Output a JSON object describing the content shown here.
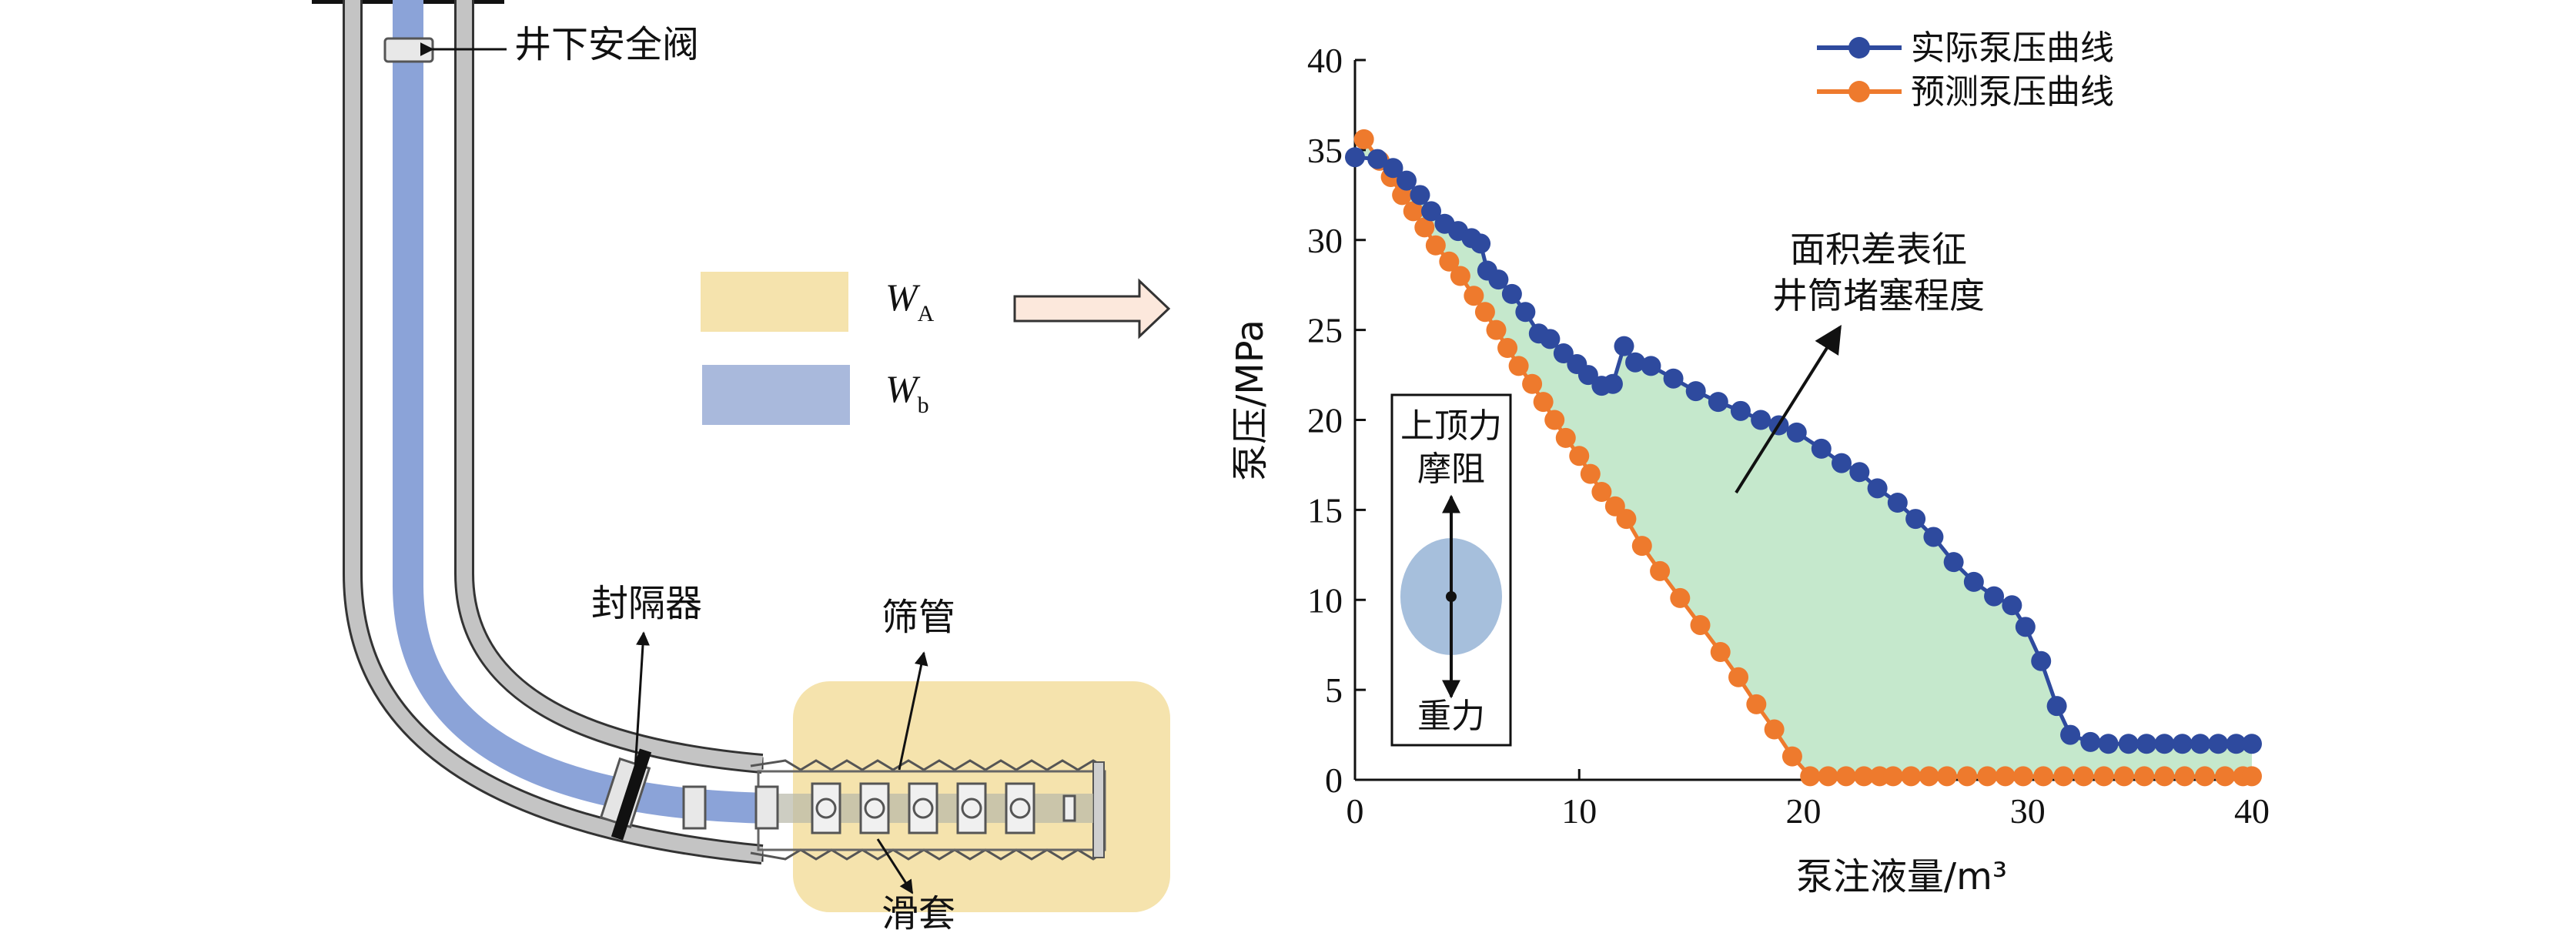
{
  "diagram": {
    "labels": {
      "valve": "井下安全阀",
      "packer": "封隔器",
      "screen": "筛管",
      "sleeve": "滑套"
    },
    "legend": {
      "wa_symbol": "W",
      "wa_sub": "A",
      "wb_symbol": "W",
      "wb_sub": "b",
      "wa_color": "#f5e3ad",
      "wb_color": "#a9b9dc"
    },
    "colors": {
      "pipe_fill": "#bdbdbd",
      "tubing": "#8ba3d8",
      "screen_zone": "#f5e3ad"
    }
  },
  "chart_data": {
    "type": "line",
    "xlabel": "泵注液量/m³",
    "ylabel": "泵压/MPa",
    "xlim": [
      0,
      40
    ],
    "ylim": [
      0,
      40
    ],
    "xticks": [
      "0",
      "10",
      "20",
      "30",
      "40"
    ],
    "yticks": [
      "0",
      "5",
      "10",
      "15",
      "20",
      "25",
      "30",
      "35",
      "40"
    ],
    "legend_position": "top-right",
    "series": [
      {
        "name": "实际泵压曲线",
        "color": "#2e4a9e",
        "x": [
          0.0,
          1.0,
          1.7,
          2.3,
          2.9,
          3.4,
          4.0,
          4.6,
          5.2,
          5.6,
          5.9,
          6.4,
          7.0,
          7.6,
          8.2,
          8.7,
          9.3,
          9.9,
          10.4,
          11.0,
          11.5,
          12.0,
          12.5,
          13.2,
          14.2,
          15.2,
          16.2,
          17.2,
          18.1,
          18.9,
          19.7,
          20.8,
          21.7,
          22.5,
          23.3,
          24.2,
          25.0,
          25.8,
          26.7,
          27.6,
          28.5,
          29.3,
          29.9,
          30.6,
          31.3,
          31.9,
          32.8,
          33.6,
          34.5,
          35.3,
          36.1,
          36.9,
          37.7,
          38.5,
          39.3,
          40.0
        ],
        "values": [
          34.6,
          34.5,
          34.0,
          33.3,
          32.5,
          31.6,
          30.9,
          30.5,
          30.1,
          29.8,
          28.3,
          27.8,
          27.0,
          26.0,
          24.8,
          24.5,
          23.7,
          23.1,
          22.5,
          21.9,
          22.0,
          24.1,
          23.2,
          23.0,
          22.3,
          21.6,
          21.0,
          20.5,
          20.0,
          19.7,
          19.3,
          18.4,
          17.6,
          17.1,
          16.2,
          15.4,
          14.5,
          13.5,
          12.1,
          11.0,
          10.2,
          9.7,
          8.5,
          6.6,
          4.1,
          2.5,
          2.1,
          2.0,
          2.0,
          2.0,
          2.0,
          2.0,
          2.0,
          2.0,
          2.0,
          2.0
        ]
      },
      {
        "name": "预测泵压曲线",
        "color": "#ee7a2d",
        "x": [
          0.4,
          1.1,
          1.6,
          2.1,
          2.6,
          3.1,
          3.6,
          4.2,
          4.7,
          5.3,
          5.8,
          6.3,
          6.8,
          7.3,
          7.9,
          8.4,
          8.9,
          9.4,
          10.0,
          10.5,
          11.0,
          11.6,
          12.1,
          12.8,
          13.6,
          14.5,
          15.4,
          16.3,
          17.1,
          17.9,
          18.7,
          19.5,
          20.3,
          21.1,
          21.9,
          22.7,
          23.4,
          24.0,
          24.8,
          25.6,
          26.4,
          27.3,
          28.2,
          29.0,
          29.8,
          30.7,
          31.6,
          32.5,
          33.4,
          34.3,
          35.2,
          36.1,
          37.0,
          37.9,
          38.8,
          39.6,
          40.0
        ],
        "values": [
          35.6,
          34.4,
          33.5,
          32.5,
          31.6,
          30.7,
          29.7,
          28.8,
          28.0,
          26.9,
          26.0,
          25.0,
          24.0,
          23.0,
          22.0,
          21.0,
          20.0,
          19.0,
          18.0,
          17.0,
          16.0,
          15.2,
          14.5,
          13.0,
          11.6,
          10.1,
          8.6,
          7.1,
          5.7,
          4.2,
          2.8,
          1.3,
          0.2,
          0.2,
          0.2,
          0.2,
          0.2,
          0.2,
          0.2,
          0.2,
          0.2,
          0.2,
          0.2,
          0.2,
          0.2,
          0.2,
          0.2,
          0.2,
          0.2,
          0.2,
          0.2,
          0.2,
          0.2,
          0.2,
          0.2,
          0.2,
          0.2
        ]
      }
    ],
    "fill_between_color": "#c5e8cc",
    "annotation": {
      "line1": "面积差表征",
      "line2": "井筒堵塞程度"
    },
    "force_box": {
      "top_line1": "上顶力",
      "top_line2": "摩阻",
      "bottom": "重力",
      "ellipse_color": "#a6bfdc"
    }
  }
}
